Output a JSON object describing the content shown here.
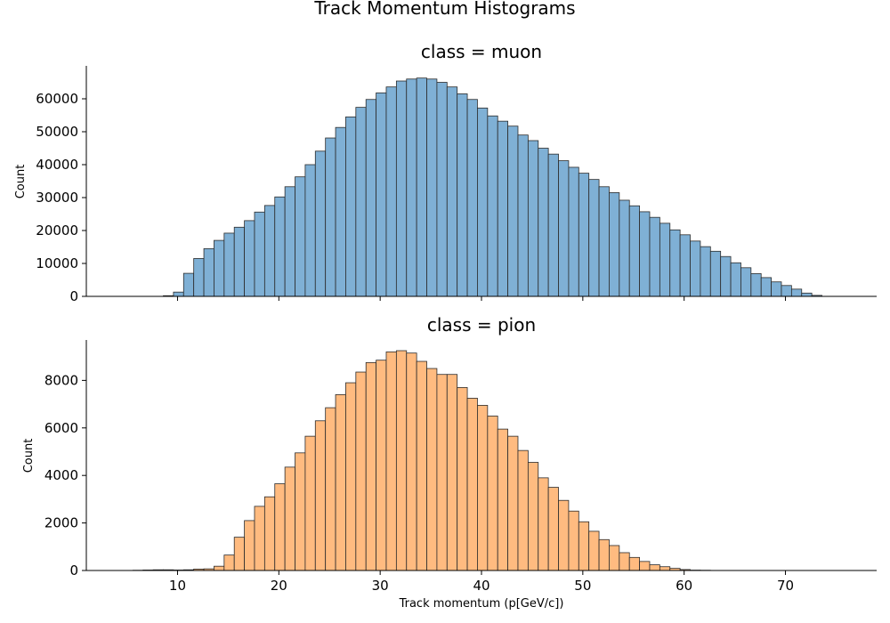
{
  "figure": {
    "title": "Track Momentum Histograms"
  },
  "chart_data": [
    {
      "type": "bar",
      "title": "class = muon",
      "xlabel": "",
      "ylabel": "Count",
      "color": "#7fb0d5",
      "edge_color": "#2b2b2b",
      "xlim": [
        1,
        79
      ],
      "ylim": [
        0,
        70000
      ],
      "x_ticks": [
        10,
        20,
        30,
        40,
        50,
        60,
        70
      ],
      "x_tick_labels_shown": false,
      "y_ticks": [
        0,
        10000,
        20000,
        30000,
        40000,
        50000,
        60000
      ],
      "y_tick_labels": [
        "0",
        "10000",
        "20000",
        "30000",
        "40000",
        "50000",
        "60000"
      ],
      "bin_start": 8.6,
      "bin_width": 1,
      "values": [
        200,
        1300,
        7000,
        11500,
        14500,
        17000,
        19200,
        21000,
        23000,
        25600,
        27600,
        30200,
        33300,
        36300,
        40000,
        44100,
        48100,
        51300,
        54500,
        57400,
        59800,
        61800,
        63600,
        65400,
        66000,
        66300,
        66000,
        65000,
        63600,
        61500,
        59800,
        57200,
        54800,
        53200,
        51700,
        49000,
        47300,
        45000,
        43200,
        41200,
        39200,
        37400,
        35500,
        33300,
        31500,
        29200,
        27500,
        25700,
        24000,
        22200,
        20200,
        18700,
        16800,
        15100,
        13700,
        12100,
        10200,
        8700,
        6900,
        5700,
        4400,
        3300,
        2200,
        1000,
        300
      ]
    },
    {
      "type": "bar",
      "title": "class = pion",
      "xlabel": "Track momentum (p[GeV/c])",
      "ylabel": "Count",
      "color": "#ffbb80",
      "edge_color": "#2b2b2b",
      "xlim": [
        1,
        79
      ],
      "ylim": [
        0,
        9700
      ],
      "x_ticks": [
        10,
        20,
        30,
        40,
        50,
        60,
        70
      ],
      "x_tick_labels": [
        "10",
        "20",
        "30",
        "40",
        "50",
        "60",
        "70"
      ],
      "y_ticks": [
        0,
        2000,
        4000,
        6000,
        8000
      ],
      "y_tick_labels": [
        "0",
        "2000",
        "4000",
        "6000",
        "8000"
      ],
      "bin_start": 5.6,
      "bin_width": 1,
      "values": [
        10,
        20,
        30,
        30,
        20,
        30,
        60,
        70,
        180,
        650,
        1400,
        2100,
        2700,
        3100,
        3650,
        4350,
        4950,
        5650,
        6300,
        6850,
        7400,
        7900,
        8350,
        8750,
        8850,
        9200,
        9250,
        9150,
        8800,
        8500,
        8250,
        8250,
        7700,
        7250,
        6950,
        6500,
        5950,
        5650,
        5050,
        4550,
        3900,
        3500,
        2950,
        2500,
        2050,
        1650,
        1300,
        1050,
        750,
        550,
        380,
        240,
        160,
        90,
        40,
        15,
        10
      ]
    }
  ]
}
